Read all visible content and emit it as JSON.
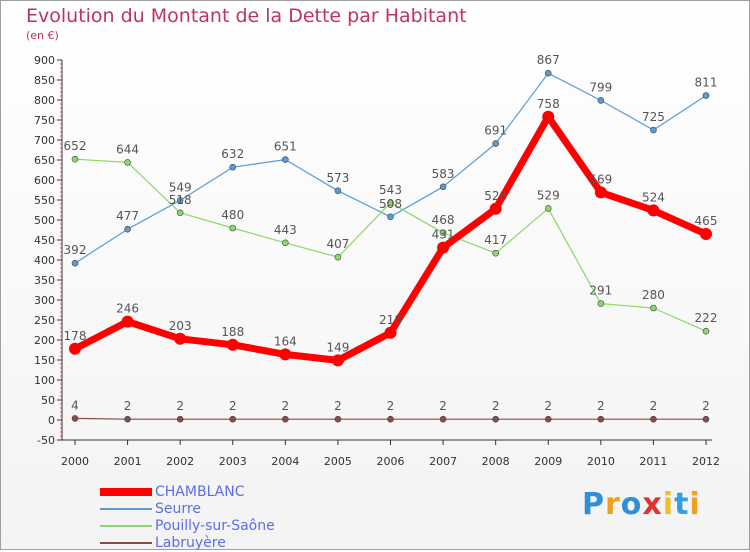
{
  "title": "Evolution du Montant de la Dette par Habitant",
  "subtitle": "(en €)",
  "logo": {
    "text": "Proxiti",
    "letters": [
      {
        "ch": "P",
        "color": "#2f8fd8"
      },
      {
        "ch": "r",
        "color": "#f0a020"
      },
      {
        "ch": "o",
        "color": "#2f8fd8"
      },
      {
        "ch": "x",
        "color": "#e03030"
      },
      {
        "ch": "i",
        "color": "#f0c020"
      },
      {
        "ch": "t",
        "color": "#30a0e0"
      },
      {
        "ch": "i",
        "color": "#f0a020"
      }
    ]
  },
  "chart_data": {
    "type": "line",
    "title": "Evolution du Montant de la Dette par Habitant",
    "subtitle": "(en €)",
    "x": [
      "2000",
      "2001",
      "2002",
      "2003",
      "2004",
      "2005",
      "2006",
      "2007",
      "2008",
      "2009",
      "2010",
      "2011",
      "2012"
    ],
    "ylim": [
      -50,
      900
    ],
    "yticks": [
      -50,
      0,
      50,
      100,
      150,
      200,
      250,
      300,
      350,
      400,
      450,
      500,
      550,
      600,
      650,
      700,
      750,
      800,
      850,
      900
    ],
    "grid": false,
    "legend_position": "bottom-left",
    "series": [
      {
        "name": "CHAMBLANC",
        "color": "#ff0000",
        "values": [
          178,
          246,
          203,
          188,
          164,
          149,
          218,
          431,
          528,
          758,
          569,
          524,
          465
        ]
      },
      {
        "name": "Seurre",
        "color": "#5a9bd5",
        "values": [
          392,
          477,
          549,
          632,
          651,
          573,
          508,
          583,
          691,
          867,
          799,
          725,
          811
        ]
      },
      {
        "name": "Pouilly-sur-Saône",
        "color": "#8ad86a",
        "values": [
          652,
          644,
          518,
          480,
          443,
          407,
          543,
          468,
          417,
          529,
          291,
          280,
          222
        ]
      },
      {
        "name": "Labruyère",
        "color": "#8b4a4a",
        "values": [
          4,
          2,
          2,
          2,
          2,
          2,
          2,
          2,
          2,
          2,
          2,
          2,
          2
        ]
      }
    ]
  }
}
